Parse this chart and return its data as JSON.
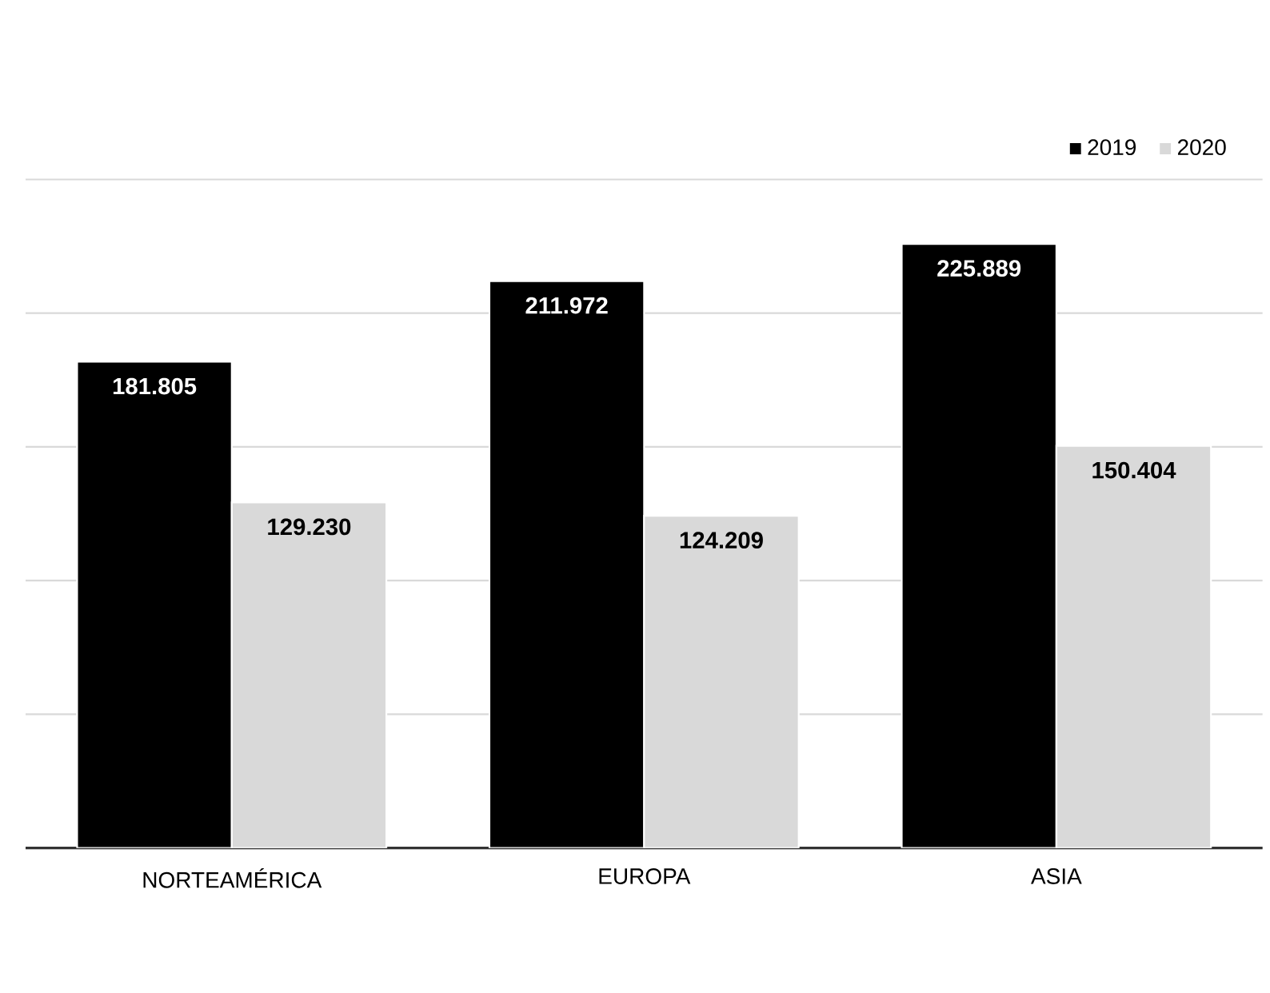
{
  "chart_data": {
    "type": "bar",
    "categories": [
      "NORTEAMÉRICA",
      "EUROPA",
      "ASIA"
    ],
    "series": [
      {
        "name": "2019",
        "color": "#000000",
        "values": [
          181805,
          211972,
          225889
        ],
        "value_labels": [
          "181.805",
          "211.972",
          "225.889"
        ]
      },
      {
        "name": "2020",
        "color": "#d9d9d9",
        "values": [
          129230,
          124209,
          150404
        ],
        "value_labels": [
          "129.230",
          "124.209",
          "150.404"
        ]
      }
    ],
    "grid": "y",
    "legend": "top right",
    "tick_labels": "x"
  }
}
